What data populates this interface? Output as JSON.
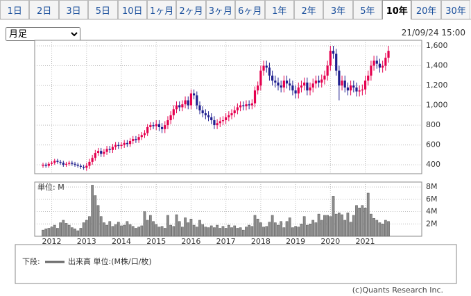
{
  "tabs": [
    "1日",
    "2日",
    "3日",
    "5日",
    "10日",
    "1ヶ月",
    "2ヶ月",
    "3ヶ月",
    "6ヶ月",
    "1年",
    "2年",
    "3年",
    "5年",
    "10年",
    "20年",
    "30年"
  ],
  "selected_tab_index": 13,
  "period_select": "月足",
  "timestamp": "21/09/24 15:00",
  "chart_data": {
    "type": "candlestick",
    "categories": [
      null,
      null,
      null,
      "2012",
      null,
      null,
      null,
      null,
      null,
      null,
      null,
      null,
      null,
      null,
      null,
      "2013",
      null,
      null,
      null,
      null,
      null,
      null,
      null,
      null,
      null,
      null,
      null,
      "2014",
      null,
      null,
      null,
      null,
      null,
      null,
      null,
      null,
      null,
      null,
      null,
      "2015",
      null,
      null,
      null,
      null,
      null,
      null,
      null,
      null,
      null,
      null,
      null,
      "2016",
      null,
      null,
      null,
      null,
      null,
      null,
      null,
      null,
      null,
      null,
      null,
      "2017",
      null,
      null,
      null,
      null,
      null,
      null,
      null,
      null,
      null,
      null,
      null,
      "2018",
      null,
      null,
      null,
      null,
      null,
      null,
      null,
      null,
      null,
      null,
      null,
      "2019",
      null,
      null,
      null,
      null,
      null,
      null,
      null,
      null,
      null,
      null,
      null,
      "2020",
      null,
      null,
      null,
      null,
      null,
      null,
      null,
      null,
      null,
      null,
      null,
      "2021",
      null,
      null,
      null,
      null,
      null,
      null,
      null,
      null
    ],
    "open": [
      390,
      400,
      390,
      410,
      420,
      440,
      430,
      420,
      400,
      410,
      420,
      410,
      400,
      390,
      380,
      370,
      390,
      430,
      470,
      520,
      540,
      510,
      530,
      560,
      550,
      580,
      600,
      590,
      600,
      620,
      610,
      640,
      660,
      650,
      680,
      700,
      720,
      780,
      800,
      790,
      810,
      780,
      760,
      800,
      850,
      900,
      960,
      1000,
      980,
      1010,
      1050,
      1000,
      1120,
      1100,
      1000,
      950,
      920,
      900,
      880,
      850,
      800,
      820,
      840,
      850,
      880,
      900,
      920,
      950,
      980,
      1000,
      990,
      1010,
      1000,
      1020,
      1150,
      1200,
      1350,
      1400,
      1380,
      1300,
      1250,
      1230,
      1200,
      1180,
      1250,
      1220,
      1200,
      1150,
      1120,
      1180,
      1200,
      1230,
      1150,
      1180,
      1220,
      1250,
      1230,
      1260,
      1300,
      1400,
      1550,
      1520,
      1350,
      1200,
      1250,
      1180,
      1150,
      1200,
      1180,
      1140,
      1150,
      1160,
      1250,
      1300,
      1400,
      1450,
      1420,
      1380,
      1400,
      1480
    ],
    "high": [
      420,
      420,
      430,
      440,
      460,
      460,
      450,
      440,
      430,
      440,
      440,
      430,
      420,
      410,
      400,
      420,
      460,
      500,
      550,
      570,
      570,
      560,
      590,
      590,
      610,
      630,
      630,
      630,
      650,
      650,
      670,
      690,
      690,
      710,
      730,
      750,
      810,
      830,
      830,
      850,
      850,
      820,
      840,
      890,
      940,
      1000,
      1040,
      1040,
      1050,
      1090,
      1090,
      1160,
      1160,
      1140,
      1040,
      990,
      960,
      940,
      920,
      890,
      860,
      880,
      890,
      920,
      940,
      960,
      990,
      1020,
      1040,
      1040,
      1050,
      1050,
      1060,
      1190,
      1240,
      1400,
      1450,
      1450,
      1430,
      1350,
      1300,
      1280,
      1250,
      1300,
      1300,
      1270,
      1250,
      1200,
      1230,
      1250,
      1280,
      1280,
      1230,
      1270,
      1300,
      1300,
      1310,
      1350,
      1450,
      1600,
      1600,
      1570,
      1400,
      1300,
      1300,
      1230,
      1250,
      1250,
      1230,
      1200,
      1210,
      1300,
      1350,
      1450,
      1500,
      1500,
      1470,
      1450,
      1530,
      1600
    ],
    "low": [
      370,
      370,
      370,
      390,
      400,
      410,
      400,
      380,
      380,
      390,
      390,
      380,
      370,
      360,
      350,
      340,
      360,
      400,
      440,
      490,
      480,
      480,
      500,
      520,
      520,
      550,
      560,
      560,
      570,
      580,
      580,
      610,
      620,
      620,
      650,
      670,
      690,
      750,
      760,
      750,
      740,
      720,
      720,
      760,
      810,
      860,
      920,
      940,
      940,
      970,
      960,
      960,
      1060,
      960,
      910,
      880,
      860,
      840,
      810,
      760,
      760,
      780,
      800,
      810,
      840,
      860,
      880,
      910,
      940,
      950,
      950,
      960,
      960,
      980,
      1110,
      1150,
      1300,
      1330,
      1250,
      1200,
      1180,
      1150,
      1130,
      1130,
      1170,
      1150,
      1100,
      1070,
      1070,
      1130,
      1150,
      1100,
      1100,
      1130,
      1170,
      1180,
      1180,
      1210,
      1250,
      1350,
      1470,
      1300,
      1050,
      1150,
      1130,
      1100,
      1100,
      1130,
      1090,
      1090,
      1100,
      1110,
      1200,
      1250,
      1350,
      1370,
      1330,
      1330,
      1350,
      1430
    ],
    "close": [
      400,
      390,
      410,
      420,
      440,
      430,
      420,
      400,
      410,
      420,
      410,
      400,
      390,
      380,
      370,
      390,
      430,
      470,
      520,
      540,
      510,
      530,
      560,
      550,
      580,
      600,
      590,
      600,
      620,
      610,
      640,
      660,
      650,
      680,
      700,
      720,
      780,
      800,
      790,
      810,
      780,
      760,
      800,
      850,
      900,
      960,
      1000,
      980,
      1010,
      1050,
      1000,
      1120,
      1100,
      1000,
      950,
      920,
      900,
      880,
      850,
      800,
      820,
      840,
      850,
      880,
      900,
      920,
      950,
      980,
      1000,
      990,
      1010,
      1000,
      1020,
      1150,
      1200,
      1350,
      1400,
      1380,
      1300,
      1250,
      1230,
      1200,
      1180,
      1250,
      1220,
      1200,
      1150,
      1120,
      1180,
      1200,
      1230,
      1150,
      1180,
      1220,
      1250,
      1230,
      1260,
      1300,
      1400,
      1550,
      1520,
      1350,
      1200,
      1250,
      1180,
      1150,
      1200,
      1180,
      1140,
      1150,
      1160,
      1250,
      1300,
      1400,
      1450,
      1420,
      1380,
      1400,
      1480,
      1550
    ],
    "up_color": "#e5004f",
    "down_color": "#1f1f8f",
    "ylim": [
      310,
      1656
    ],
    "yticks": [
      400,
      600,
      800,
      {
        "value": 1000,
        "label": "1,000"
      },
      {
        "value": 1200,
        "label": "1,200"
      },
      {
        "value": 1400,
        "label": "1,400"
      },
      {
        "value": 1600,
        "label": "1,600"
      }
    ],
    "grid": true,
    "volume": {
      "title": "単位: M",
      "color": "#8c8c8c",
      "values": [
        1.0,
        1.2,
        1.3,
        1.5,
        1.8,
        1.3,
        2.2,
        2.6,
        2.1,
        1.8,
        1.4,
        1.2,
        0.9,
        1.3,
        2.2,
        2.6,
        3.2,
        8.3,
        6.6,
        5.0,
        3.2,
        2.2,
        1.8,
        2.4,
        1.6,
        1.9,
        2.3,
        1.7,
        1.8,
        2.4,
        1.9,
        1.6,
        1.3,
        1.5,
        1.7,
        4.0,
        2.6,
        3.4,
        2.4,
        1.9,
        1.5,
        1.6,
        1.3,
        3.4,
        1.8,
        1.6,
        3.5,
        2.4,
        1.5,
        3.0,
        2.2,
        2.8,
        1.8,
        1.5,
        2.6,
        1.9,
        1.5,
        1.4,
        1.7,
        1.4,
        1.8,
        1.3,
        1.6,
        1.3,
        1.8,
        1.4,
        1.7,
        1.3,
        1.4,
        1.0,
        1.5,
        1.8,
        1.6,
        3.4,
        2.8,
        2.2,
        1.5,
        1.6,
        2.3,
        3.4,
        2.2,
        1.8,
        2.4,
        1.4,
        2.4,
        3.0,
        1.4,
        1.6,
        1.5,
        2.0,
        3.2,
        1.8,
        2.0,
        2.6,
        2.2,
        3.6,
        2.6,
        3.4,
        3.4,
        3.2,
        6.5,
        3.6,
        3.8,
        3.5,
        2.6,
        3.8,
        2.3,
        3.4,
        5.0,
        4.6,
        5.0,
        4.6,
        7.0,
        3.6,
        2.9,
        2.6,
        2.2,
        2.0,
        2.6,
        2.4
      ],
      "ylim": [
        0,
        8.8
      ],
      "yticks": [
        {
          "value": 2,
          "label": "2M"
        },
        {
          "value": 4,
          "label": "4M"
        },
        {
          "value": 6,
          "label": "6M"
        },
        {
          "value": 8,
          "label": "8M"
        }
      ]
    }
  },
  "legend": {
    "prefix": "下段:",
    "label": "出来高 単位:(M株/口/枚)"
  },
  "copyright": "(c)Quants Research Inc."
}
